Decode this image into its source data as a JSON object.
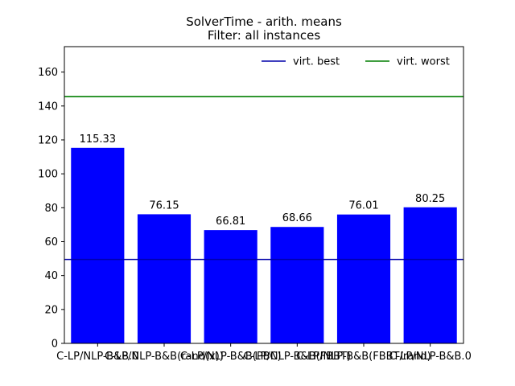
{
  "chart_data": {
    "type": "bar",
    "title": "SolverTime - arith. means",
    "subtitle": "Filter: all instances",
    "xlabel": "",
    "ylabel": "",
    "ylim": [
      0,
      175
    ],
    "yticks": [
      0,
      20,
      40,
      60,
      80,
      100,
      120,
      140,
      160
    ],
    "grid": false,
    "legend_position": "top-right",
    "categories": [
      "C-LP/NLP-B&B.0",
      "C-LP/NLP-B&B(rand(x))",
      "C-LP/NLP-B&B(PBC)",
      "C-LP/NLP-B&B(FBBT)",
      "C-LP/NLP-B&B(FBBT/rand)",
      "C-LP/NLP-B&B.0"
    ],
    "values": [
      115.33,
      76.15,
      66.81,
      68.66,
      76.01,
      80.25
    ],
    "value_labels": [
      "115.33",
      "76.15",
      "66.81",
      "68.66",
      "76.01",
      "80.25"
    ],
    "bar_color": "#0000ff",
    "reference_lines": [
      {
        "name": "virt. best",
        "value": 49.5,
        "color": "#0000aa"
      },
      {
        "name": "virt. worst",
        "value": 145.5,
        "color": "#007f00"
      }
    ]
  }
}
